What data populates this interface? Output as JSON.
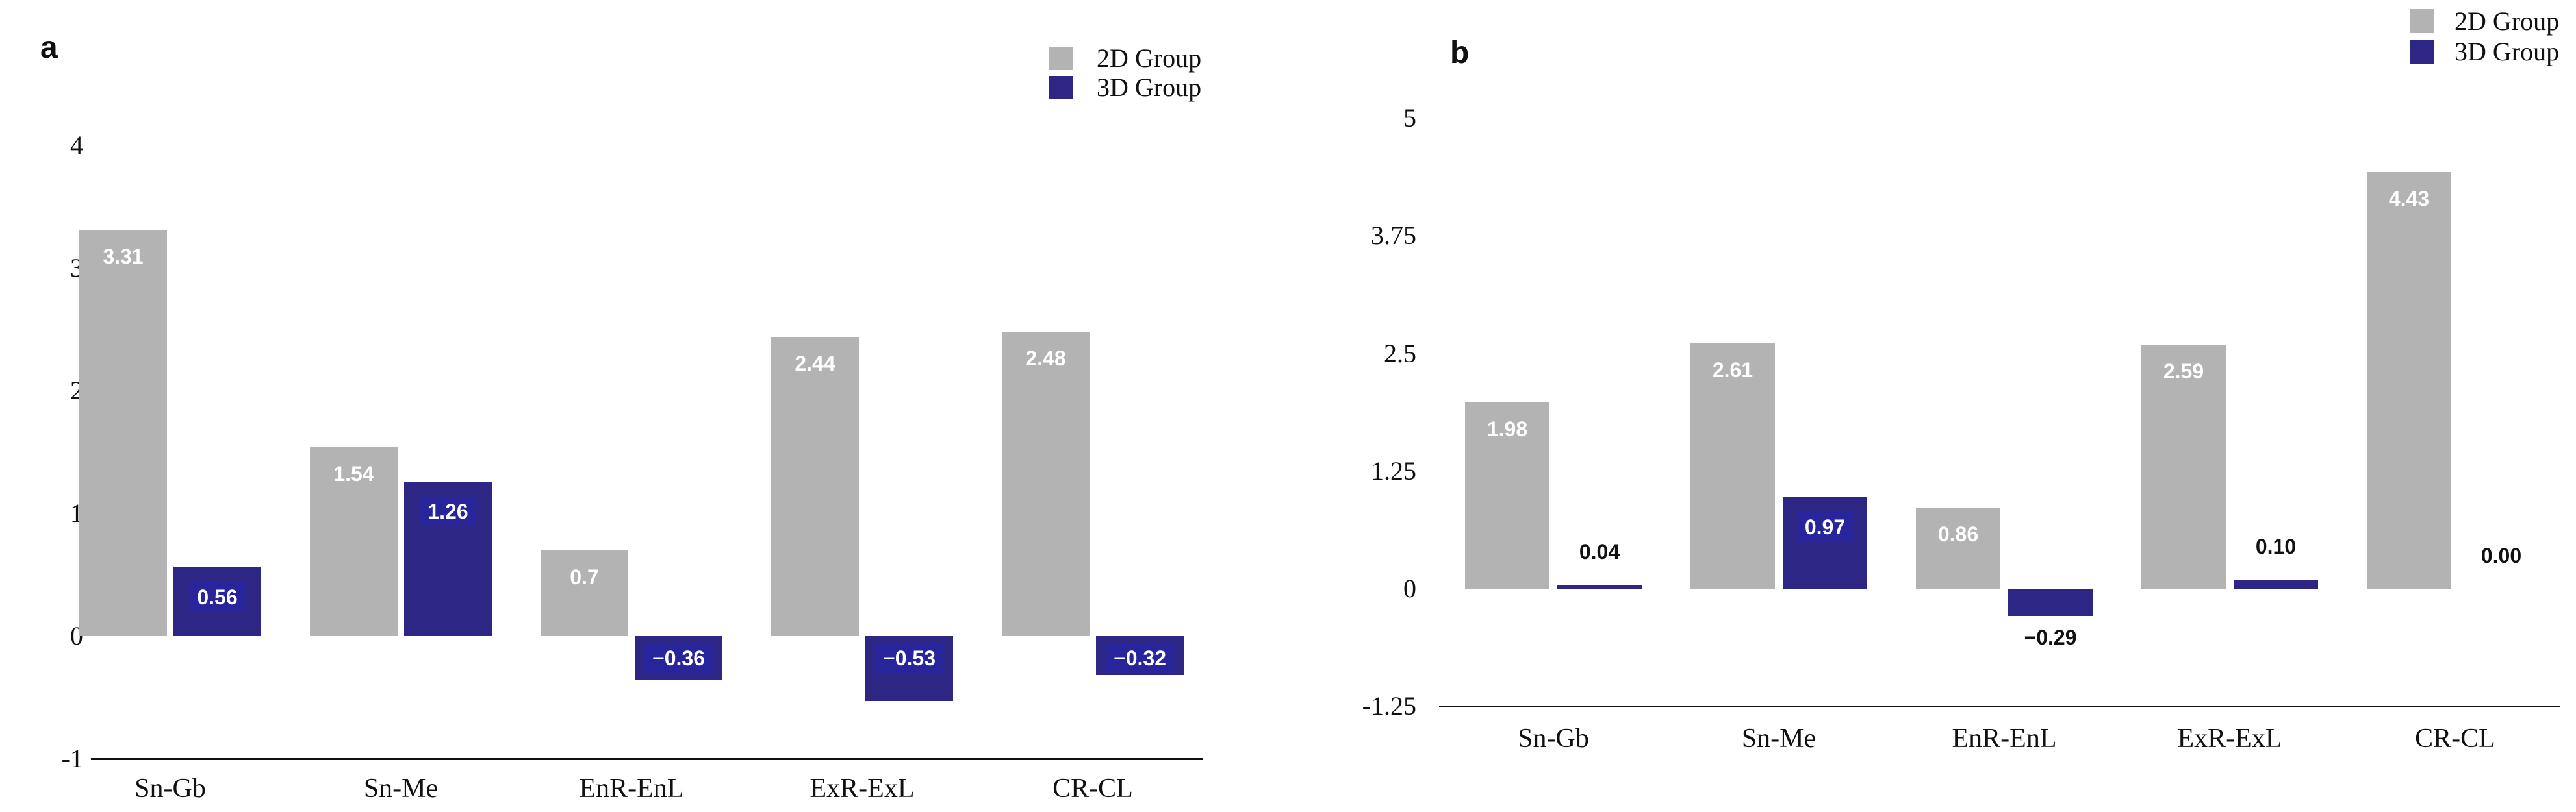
{
  "figure": {
    "background": "#ffffff",
    "panels": [
      "a",
      "b"
    ]
  },
  "colors": {
    "bar_2d": "#b3b3b3",
    "bar_3d": "#2d2685",
    "label_box_3d": "#28249b",
    "axis_text": "#111111",
    "value_label_light": "#ffffff",
    "value_label_dark": "#111111",
    "axis_line": "#111111"
  },
  "chart_data": [
    {
      "id": "a",
      "type": "bar",
      "panel_label": "a",
      "title": "",
      "xlabel": "",
      "ylabel": "",
      "grid": false,
      "legend_position": "top-right",
      "categories": [
        "Sn-Gb",
        "Sn-Me",
        "EnR-EnL",
        "ExR-ExL",
        "CR-CL"
      ],
      "yticks": [
        {
          "v": 4,
          "label": "4"
        },
        {
          "v": 3,
          "label": "3"
        },
        {
          "v": 2,
          "label": "2"
        },
        {
          "v": 1,
          "label": "1"
        },
        {
          "v": 0,
          "label": "0"
        },
        {
          "v": -1,
          "label": "-1"
        }
      ],
      "ylim": [
        -1,
        4.6
      ],
      "series": [
        {
          "name": "2D Group",
          "color": "#b3b3b3",
          "values": [
            3.31,
            1.54,
            0.7,
            2.44,
            2.48
          ],
          "labels": [
            "3.31",
            "1.54",
            "0.7",
            "2.44",
            "2.48"
          ],
          "label_placement": [
            "inside",
            "inside",
            "inside",
            "inside",
            "inside"
          ]
        },
        {
          "name": "3D Group",
          "color": "#2d2685",
          "values": [
            0.56,
            1.26,
            -0.36,
            -0.53,
            -0.32
          ],
          "labels": [
            "0.56",
            "1.26",
            "−0.36",
            "−0.53",
            "−0.32"
          ],
          "label_placement": [
            "inside",
            "inside",
            "inside",
            "inside",
            "inside"
          ]
        }
      ]
    },
    {
      "id": "b",
      "type": "bar",
      "panel_label": "b",
      "title": "",
      "xlabel": "",
      "ylabel": "",
      "grid": false,
      "legend_position": "top-right",
      "categories": [
        "Sn-Gb",
        "Sn-Me",
        "EnR-EnL",
        "ExR-ExL",
        "CR-CL"
      ],
      "yticks": [
        {
          "v": 5,
          "label": "5"
        },
        {
          "v": 3.75,
          "label": "3.75"
        },
        {
          "v": 2.5,
          "label": "2.5"
        },
        {
          "v": 1.25,
          "label": "1.25"
        },
        {
          "v": 0,
          "label": "0"
        },
        {
          "v": -1.25,
          "label": "-1.25"
        }
      ],
      "ylim": [
        -1.25,
        5
      ],
      "series": [
        {
          "name": "2D Group",
          "color": "#b3b3b3",
          "values": [
            1.98,
            2.61,
            0.86,
            2.59,
            4.43
          ],
          "labels": [
            "1.98",
            "2.61",
            "0.86",
            "2.59",
            "4.43"
          ],
          "label_placement": [
            "inside",
            "inside",
            "inside",
            "inside",
            "inside"
          ]
        },
        {
          "name": "3D Group",
          "color": "#2d2685",
          "values": [
            0.04,
            0.97,
            -0.29,
            0.1,
            0.0
          ],
          "labels": [
            "0.04",
            "0.97",
            "−0.29",
            "0.10",
            "0.00"
          ],
          "label_placement": [
            "above",
            "inside",
            "below",
            "above",
            "above"
          ]
        }
      ]
    }
  ]
}
